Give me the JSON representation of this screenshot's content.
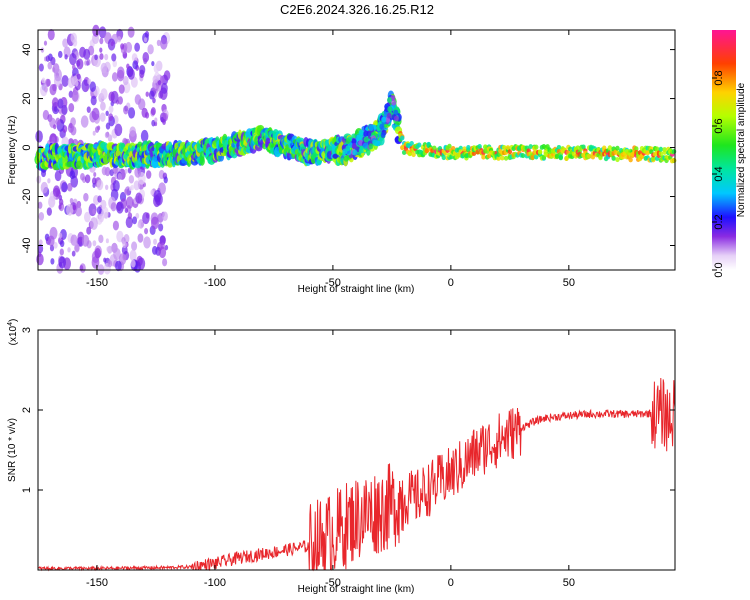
{
  "title": "C2E6.2024.326.16.25.R12",
  "chart_data": [
    {
      "type": "heatmap",
      "xlabel": "Height of straight line (km)",
      "ylabel": "Frequency (Hz)",
      "xlim": [
        -175,
        95
      ],
      "ylim": [
        -50,
        48
      ],
      "xticks": [
        -150,
        -100,
        -50,
        0,
        50
      ],
      "yticks": [
        -40,
        -20,
        0,
        20,
        40
      ],
      "colorbar": {
        "label": "Normalized spectral amplitude",
        "range": [
          0,
          1
        ],
        "ticks": [
          "0.0",
          "0.2",
          "0.4",
          "0.6",
          "0.8"
        ],
        "tick_values": [
          0,
          0.2,
          0.4,
          0.6,
          0.8
        ]
      },
      "trace": {
        "description_points_x": [
          -170,
          -150,
          -120,
          -100,
          -80,
          -60,
          -45,
          -30,
          -25,
          -20,
          0,
          50,
          95
        ],
        "description_points_y": [
          -4,
          -3,
          -3,
          -1,
          4,
          -2,
          -1,
          6,
          18,
          0,
          -2,
          -2,
          -3
        ]
      }
    },
    {
      "type": "line",
      "xlabel": "Height of straight line (km)",
      "ylabel": "SNR (10 * v/v)",
      "y_multiplier": "(x10",
      "y_multiplier_exp": "4",
      "y_multiplier_close": ")",
      "xlim": [
        -175,
        95
      ],
      "ylim": [
        0,
        3
      ],
      "xticks": [
        -150,
        -100,
        -50,
        0,
        50
      ],
      "yticks": [
        1,
        2,
        3
      ],
      "line_color": "#e8262b",
      "envelope": {
        "x": [
          -175,
          -150,
          -120,
          -110,
          -100,
          -90,
          -80,
          -70,
          -60,
          -50,
          -45,
          -40,
          -35,
          -30,
          -25,
          -20,
          -15,
          -10,
          -5,
          0,
          5,
          10,
          15,
          20,
          25,
          30,
          35,
          40,
          50,
          60,
          70,
          80,
          85,
          88,
          90,
          92,
          95
        ],
        "y": [
          0.02,
          0.02,
          0.03,
          0.04,
          0.08,
          0.15,
          0.2,
          0.25,
          0.3,
          0.45,
          0.55,
          0.65,
          0.7,
          0.75,
          0.8,
          0.9,
          0.9,
          1.0,
          1.1,
          1.2,
          1.3,
          1.45,
          1.55,
          1.62,
          1.7,
          1.78,
          1.85,
          1.9,
          1.93,
          1.95,
          1.95,
          1.95,
          1.96,
          1.95,
          1.97,
          1.9,
          1.95
        ]
      }
    }
  ]
}
